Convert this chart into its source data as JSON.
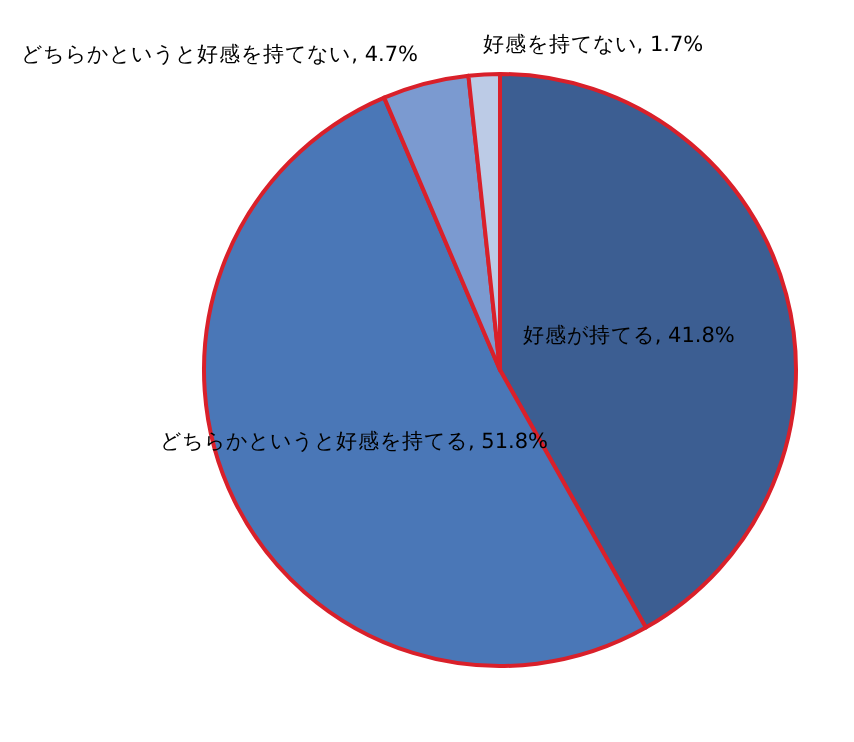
{
  "chart_data": {
    "type": "pie",
    "categories": [
      "好感が持てる",
      "どちらかというと好感を持てる",
      "どちらかというと好感を持てない",
      "好感を持てない"
    ],
    "values": [
      41.8,
      51.8,
      4.7,
      1.7
    ],
    "value_labels": [
      "41.8%",
      "51.8%",
      "4.7%",
      "1.7%"
    ],
    "colors": [
      "#3c5e92",
      "#4a77b7",
      "#7b9ad0",
      "#bccbe6"
    ]
  }
}
